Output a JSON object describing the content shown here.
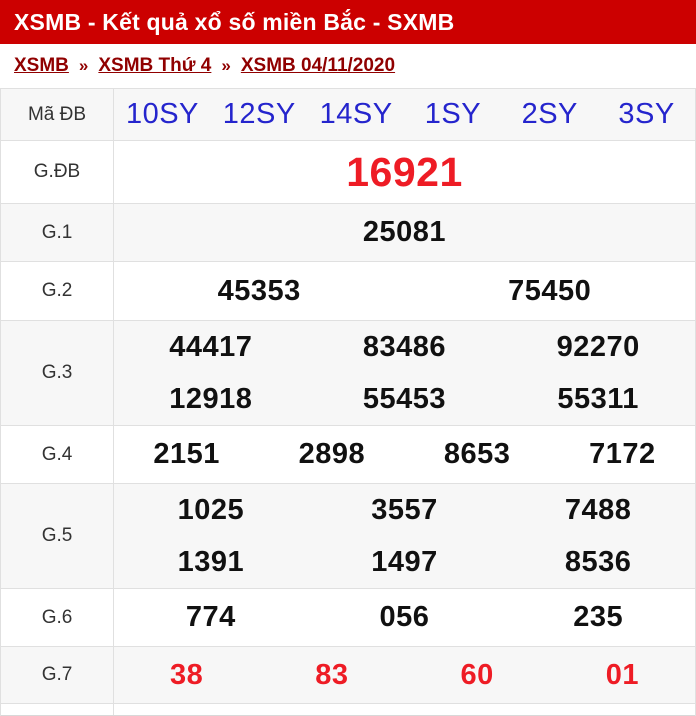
{
  "header": {
    "title": "XSMB - Kết quả xổ số miền Bắc - SXMB"
  },
  "breadcrumb": {
    "separator": "»",
    "items": [
      {
        "label": "XSMB"
      },
      {
        "label": "XSMB Thứ 4"
      },
      {
        "label": "XSMB 04/11/2020"
      }
    ]
  },
  "table": {
    "code_row": {
      "label": "Mã ĐB",
      "codes": [
        "10SY",
        "12SY",
        "14SY",
        "1SY",
        "2SY",
        "3SY"
      ]
    },
    "prizes": [
      {
        "label": "G.ĐB",
        "values": [
          "16921"
        ]
      },
      {
        "label": "G.1",
        "values": [
          "25081"
        ]
      },
      {
        "label": "G.2",
        "values": [
          "45353",
          "75450"
        ]
      },
      {
        "label": "G.3",
        "values": [
          "44417",
          "83486",
          "92270",
          "12918",
          "55453",
          "55311"
        ]
      },
      {
        "label": "G.4",
        "values": [
          "2151",
          "2898",
          "8653",
          "7172"
        ]
      },
      {
        "label": "G.5",
        "values": [
          "1025",
          "3557",
          "7488",
          "1391",
          "1497",
          "8536"
        ]
      },
      {
        "label": "G.6",
        "values": [
          "774",
          "056",
          "235"
        ]
      },
      {
        "label": "G.7",
        "values": [
          "38",
          "83",
          "60",
          "01"
        ]
      }
    ]
  },
  "colors": {
    "header_bg": "#cc0000",
    "header_text": "#ffffff",
    "breadcrumb_link": "#900000",
    "code_blue": "#2525cd",
    "highlight_red": "#ee1c25",
    "number_black": "#111111",
    "stripe_bg": "#f7f7f7",
    "border": "#e0e0e0"
  }
}
